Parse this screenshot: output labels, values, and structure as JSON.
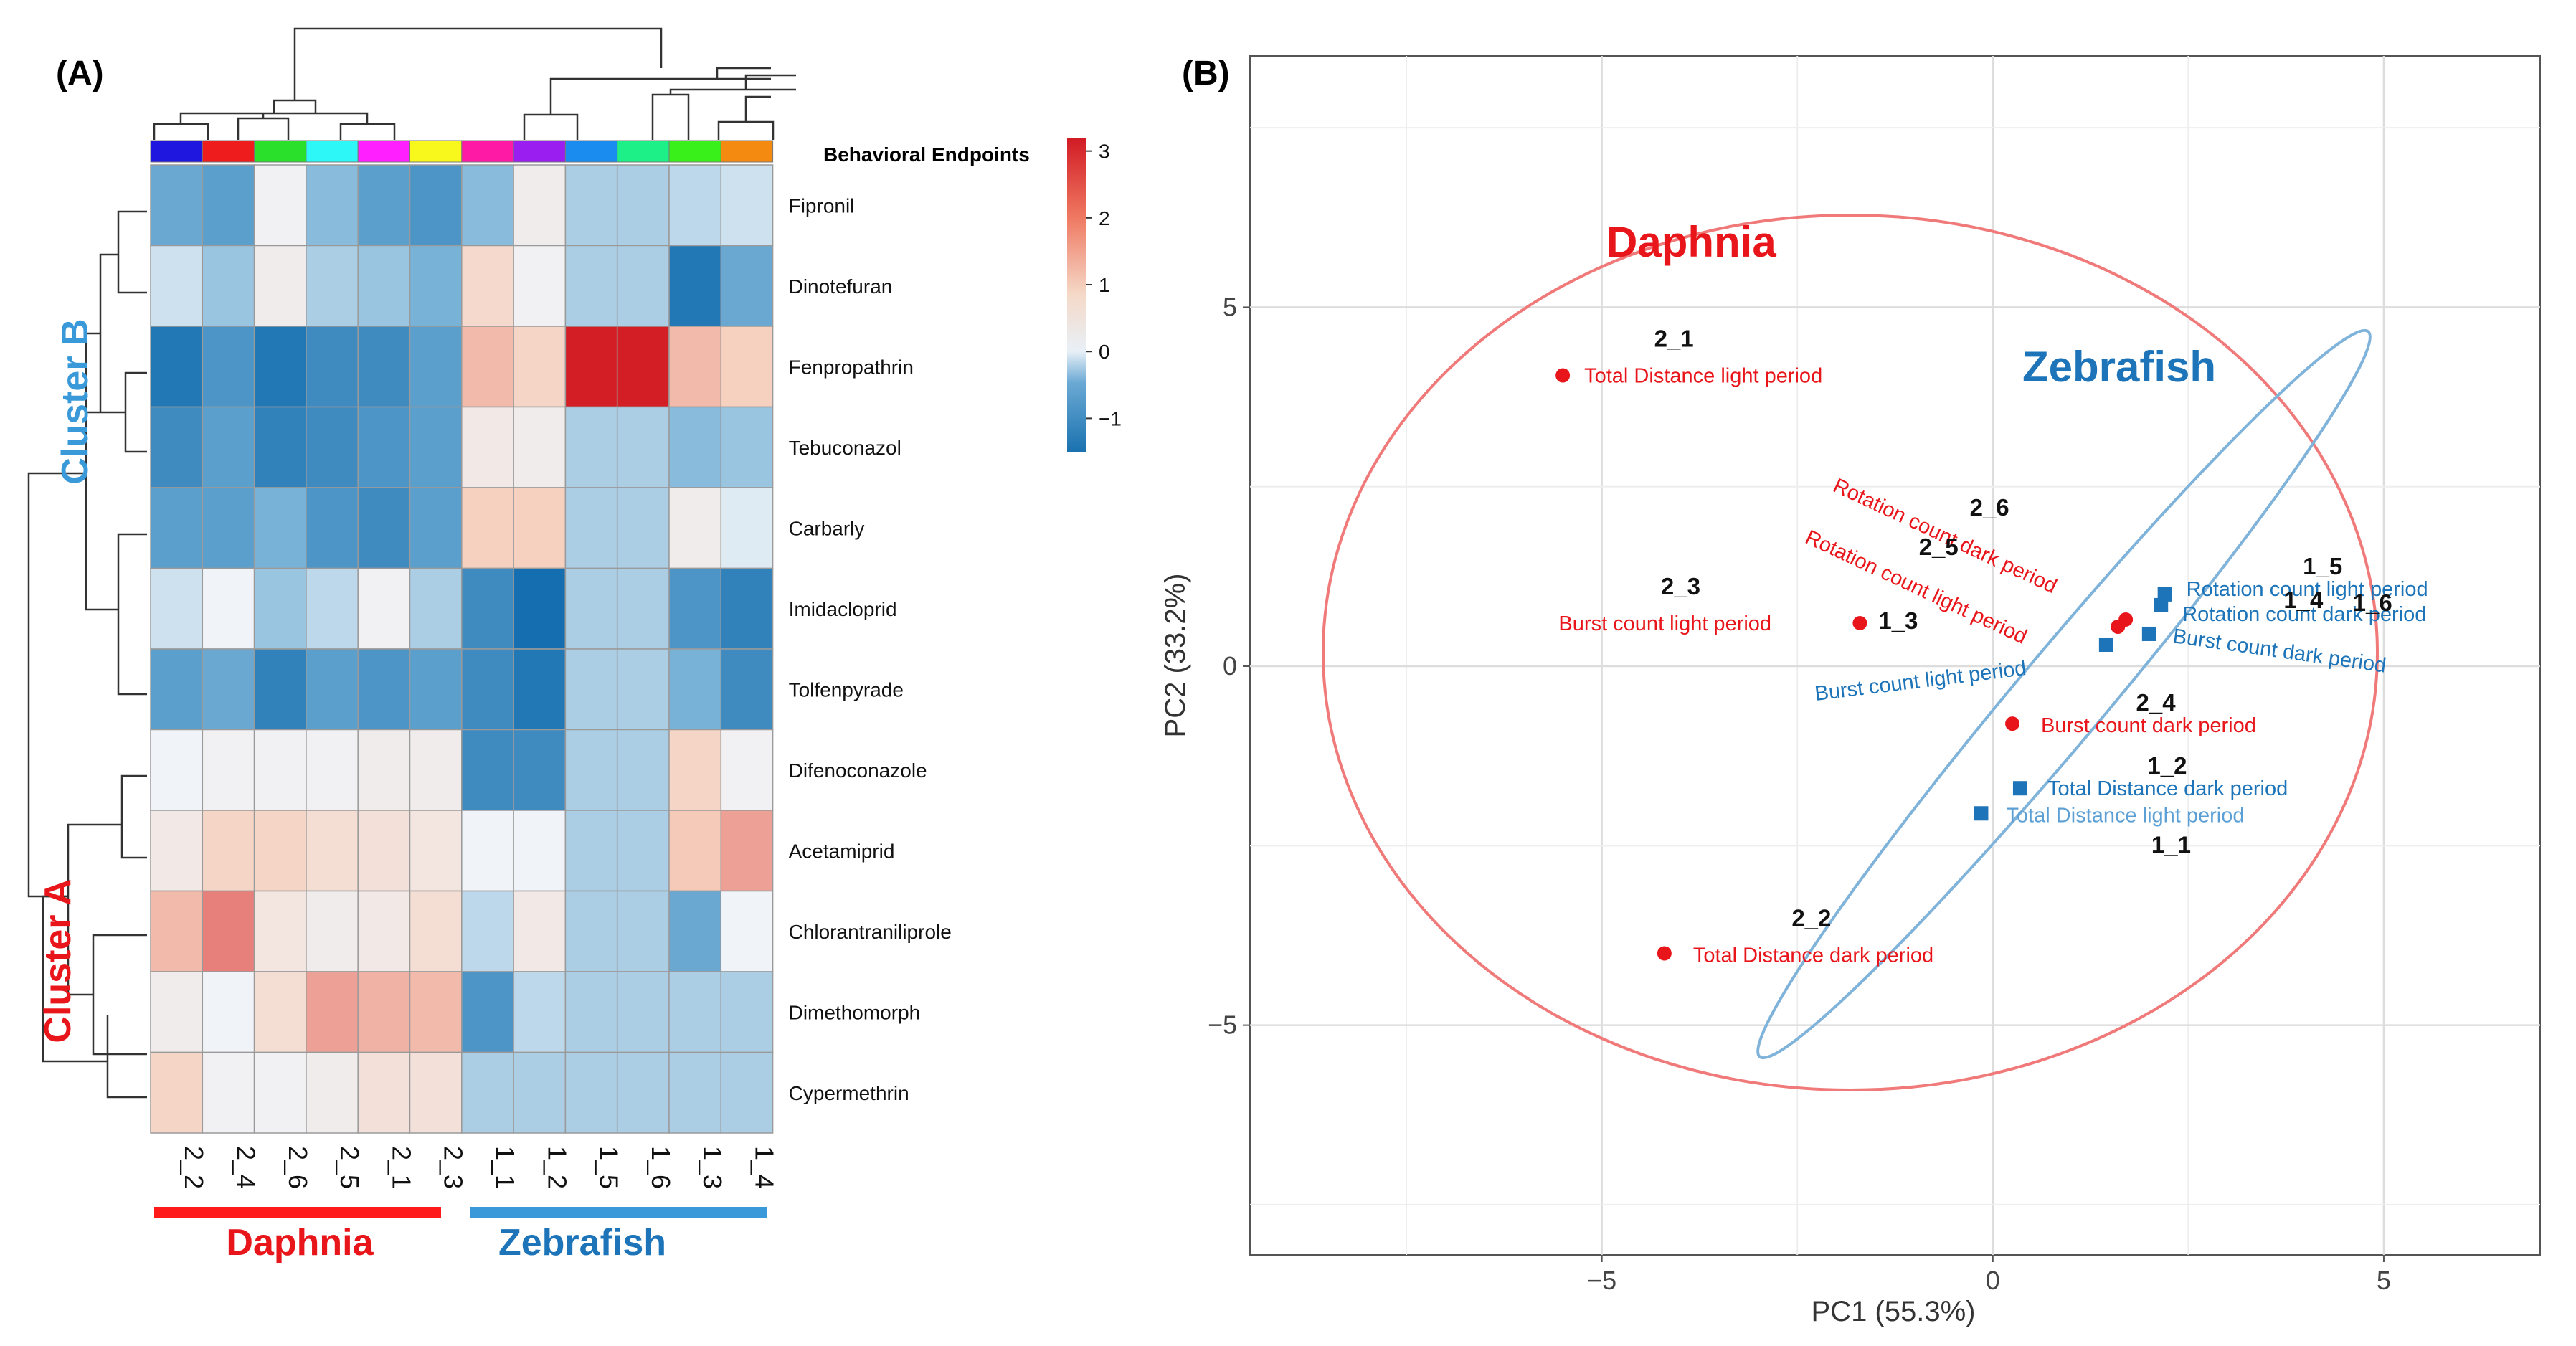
{
  "panels": {
    "a_label": "(A)",
    "b_label": "(B)"
  },
  "colors": {
    "daphnia": "#e8161b",
    "zebrafish": "#1d74b8",
    "zebrafish_light": "#5b9fd4",
    "ellipse_daphnia": "#f07a7a",
    "ellipse_zebrafish": "#7fb3da",
    "cluster_b": "#3a9ad9",
    "cluster_a": "#e8161b",
    "bar_daphnia": "#ff1a1a",
    "bar_zebrafish": "#3a9ad9"
  },
  "chart_data": [
    {
      "type": "heatmap",
      "panel": "(A)",
      "columns": [
        "2_2",
        "2_4",
        "2_6",
        "2_5",
        "2_1",
        "2_3",
        "1_1",
        "1_2",
        "1_5",
        "1_6",
        "1_3",
        "1_4"
      ],
      "column_annotation_title": "Behavioral Endpoints",
      "column_annotation_colors": [
        "#1f16e0",
        "#ee1c1c",
        "#2ae02a",
        "#2ef7f7",
        "#ff1fff",
        "#f8f81c",
        "#ff1aa6",
        "#9a1ef0",
        "#1a8cf0",
        "#1ef088",
        "#3af01a",
        "#f58a10"
      ],
      "rows": [
        "Fipronil",
        "Dinotefuran",
        "Fenpropathrin",
        "Tebuconazol",
        "Carbarly",
        "Imidacloprid",
        "Tolfenpyrade",
        "Difenoconazole",
        "Acetamiprid",
        "Chlorantraniliprole",
        "Dimethomorph",
        "Cypermethrin"
      ],
      "values": [
        [
          -0.8,
          -0.9,
          0.1,
          -0.6,
          -0.9,
          -1.0,
          -0.6,
          0.2,
          -0.4,
          -0.4,
          -0.3,
          -0.2
        ],
        [
          -0.2,
          -0.5,
          0.2,
          -0.4,
          -0.5,
          -0.7,
          0.7,
          0.1,
          -0.4,
          -0.4,
          -1.3,
          -0.8
        ],
        [
          -1.3,
          -1.0,
          -1.3,
          -1.1,
          -1.1,
          -0.9,
          1.2,
          0.8,
          3.1,
          3.1,
          1.2,
          0.9
        ],
        [
          -1.1,
          -0.9,
          -1.2,
          -1.1,
          -1.0,
          -0.9,
          0.3,
          0.2,
          -0.4,
          -0.4,
          -0.6,
          -0.5
        ],
        [
          -0.9,
          -0.9,
          -0.7,
          -1.0,
          -1.1,
          -0.9,
          0.9,
          0.9,
          -0.4,
          -0.4,
          0.2,
          -0.1
        ],
        [
          -0.2,
          0.0,
          -0.5,
          -0.3,
          0.1,
          -0.4,
          -1.1,
          -1.4,
          -0.4,
          -0.4,
          -1.0,
          -1.2
        ],
        [
          -0.9,
          -0.8,
          -1.2,
          -0.9,
          -1.0,
          -0.9,
          -1.1,
          -1.3,
          -0.4,
          -0.4,
          -0.7,
          -1.1
        ],
        [
          0.0,
          0.1,
          0.1,
          0.1,
          0.2,
          0.2,
          -1.1,
          -1.1,
          -0.4,
          -0.4,
          0.8,
          0.1
        ],
        [
          0.3,
          0.8,
          0.8,
          0.6,
          0.5,
          0.4,
          0.0,
          0.0,
          -0.4,
          -0.4,
          1.0,
          1.5
        ],
        [
          1.2,
          1.9,
          0.4,
          0.2,
          0.3,
          0.6,
          -0.3,
          0.3,
          -0.4,
          -0.4,
          -0.8,
          0.0
        ],
        [
          0.2,
          0.0,
          0.6,
          1.5,
          1.3,
          1.2,
          -1.0,
          -0.3,
          -0.4,
          -0.4,
          -0.4,
          -0.4
        ],
        [
          0.8,
          0.1,
          0.1,
          0.2,
          0.5,
          0.5,
          -0.4,
          -0.4,
          -0.4,
          -0.4,
          -0.4,
          -0.4
        ]
      ],
      "color_scale": {
        "min": -1.5,
        "max": 3.2,
        "ticks": [
          3,
          2,
          1,
          0,
          -1
        ],
        "tick_labels": [
          "3",
          "2",
          "1",
          "0",
          "−1"
        ]
      },
      "row_clusters": [
        "Cluster B",
        "Cluster A"
      ],
      "group_labels": [
        "Daphnia",
        "Zebrafish"
      ]
    },
    {
      "type": "scatter",
      "panel": "(B)",
      "xlabel": "PC1 (55.3%)",
      "ylabel": "PC2 (33.2%)",
      "xlim": [
        -9.5,
        7.0
      ],
      "ylim": [
        -8.2,
        8.5
      ],
      "xticks": [
        -5,
        0,
        5
      ],
      "xtick_labels": [
        "−5",
        "0",
        "5"
      ],
      "yticks": [
        5,
        0,
        -5
      ],
      "ytick_labels": [
        "5",
        "0",
        "−5"
      ],
      "groups": [
        "Daphnia",
        "Zebrafish"
      ],
      "points": [
        {
          "x": -5.5,
          "y": 4.05,
          "group": "Daphnia",
          "label": "Total Distance light period",
          "id": "2_1"
        },
        {
          "x": -1.7,
          "y": 0.6,
          "group": "Daphnia",
          "label": "Burst count light period",
          "id": "2_3"
        },
        {
          "x": 0.25,
          "y": -0.8,
          "group": "Daphnia",
          "label": "Burst count dark period",
          "id": "2_4"
        },
        {
          "x": -4.2,
          "y": -4.0,
          "group": "Daphnia",
          "label": "Total Distance dark period",
          "id": "2_2"
        },
        {
          "x": 1.7,
          "y": 0.65,
          "group": "Daphnia",
          "label": "Rotation count dark period",
          "id": "2_6"
        },
        {
          "x": 1.6,
          "y": 0.55,
          "group": "Daphnia",
          "label": "Rotation count light period",
          "id": "2_5"
        },
        {
          "x": 2.2,
          "y": 1.0,
          "group": "Zebrafish",
          "label": "Rotation count light period",
          "id": "1_5"
        },
        {
          "x": 2.15,
          "y": 0.85,
          "group": "Zebrafish",
          "label": "Rotation count dark period",
          "id": "1_6"
        },
        {
          "x": 2.0,
          "y": 0.45,
          "group": "Zebrafish",
          "label": "Burst count dark period",
          "id": "1_4"
        },
        {
          "x": 1.45,
          "y": 0.3,
          "group": "Zebrafish",
          "label": "Burst count light period",
          "id": "1_3"
        },
        {
          "x": 0.35,
          "y": -1.7,
          "group": "Zebrafish",
          "label": "Total Distance dark period",
          "id": "1_2"
        },
        {
          "x": -0.15,
          "y": -2.05,
          "group": "Zebrafish",
          "label": "Total Distance light period",
          "id": "1_1"
        }
      ]
    }
  ]
}
